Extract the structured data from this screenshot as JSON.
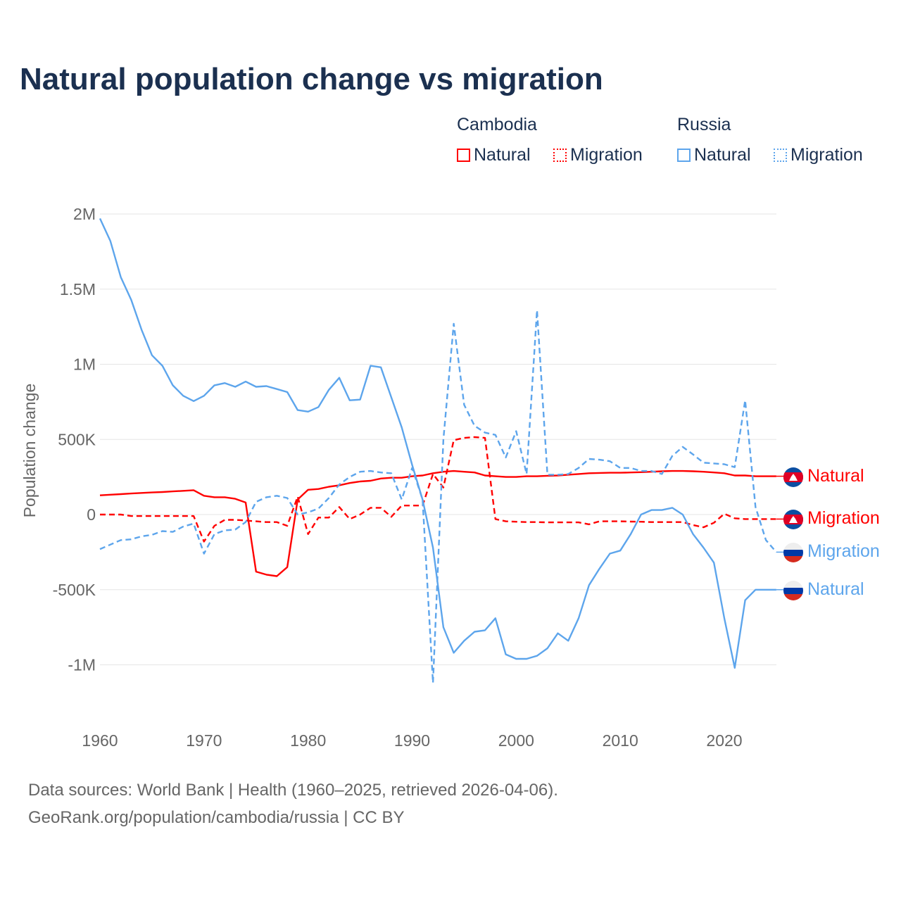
{
  "title": "Natural population change vs migration",
  "legend": {
    "groups": [
      {
        "name": "Cambodia",
        "items": [
          "Natural",
          "Migration"
        ]
      },
      {
        "name": "Russia",
        "items": [
          "Natural",
          "Migration"
        ]
      }
    ]
  },
  "colors": {
    "cambodia": "#ff0000",
    "russia": "#5da5ec",
    "grid": "#e6e6e6",
    "axis_text": "#666666"
  },
  "footer": {
    "line1": "Data sources: World Bank | Health (1960–2025, retrieved 2026-04-06).",
    "line2": "GeoRank.org/population/cambodia/russia | CC BY"
  },
  "chart_data": {
    "type": "line",
    "title": "Natural population change vs migration",
    "xlabel": "",
    "ylabel": "Population change",
    "xlim": [
      1960,
      2025
    ],
    "ylim": [
      -1200000,
      2000000
    ],
    "xticks": [
      1960,
      1970,
      1980,
      1990,
      2000,
      2010,
      2020
    ],
    "xtick_labels": [
      "1960",
      "1970",
      "1980",
      "1990",
      "2000",
      "2010",
      "2020"
    ],
    "yticks": [
      2000000,
      1500000,
      1000000,
      500000,
      0,
      -500000,
      -1000000
    ],
    "ytick_labels": [
      "2M",
      "1.5M",
      "1M",
      "500K",
      "0",
      "-500K",
      "-1M"
    ],
    "grid": true,
    "legend_placement": "top-right",
    "x_start": 1960,
    "series": [
      {
        "name": "Cambodia Natural",
        "end_label": "Natural",
        "country": "Cambodia",
        "dash": false,
        "color": "#ff0000",
        "values": [
          128000,
          132000,
          136000,
          140000,
          144000,
          147000,
          150000,
          154000,
          158000,
          162000,
          125000,
          115000,
          115000,
          105000,
          80000,
          -380000,
          -400000,
          -410000,
          -350000,
          100000,
          165000,
          170000,
          185000,
          195000,
          210000,
          220000,
          225000,
          240000,
          245000,
          245000,
          255000,
          260000,
          275000,
          285000,
          290000,
          285000,
          280000,
          260000,
          255000,
          250000,
          250000,
          255000,
          255000,
          258000,
          260000,
          265000,
          270000,
          275000,
          277000,
          278000,
          278000,
          280000,
          282000,
          285000,
          288000,
          290000,
          290000,
          288000,
          285000,
          280000,
          275000,
          260000,
          260000,
          255000,
          255000,
          255000
        ]
      },
      {
        "name": "Cambodia Migration",
        "end_label": "Migration",
        "country": "Cambodia",
        "dash": true,
        "color": "#ff0000",
        "values": [
          0,
          0,
          0,
          -10000,
          -10000,
          -10000,
          -10000,
          -10000,
          -10000,
          -10000,
          -180000,
          -75000,
          -35000,
          -35000,
          -40000,
          -45000,
          -50000,
          -50000,
          -75000,
          120000,
          -130000,
          -20000,
          -20000,
          50000,
          -30000,
          0,
          45000,
          45000,
          -15000,
          60000,
          60000,
          60000,
          270000,
          180000,
          495000,
          510000,
          515000,
          510000,
          -30000,
          -45000,
          -48000,
          -50000,
          -50000,
          -52000,
          -52000,
          -52000,
          -52000,
          -65000,
          -45000,
          -45000,
          -45000,
          -47000,
          -48000,
          -50000,
          -50000,
          -50000,
          -50000,
          -70000,
          -85000,
          -55000,
          5000,
          -25000,
          -30000,
          -30000,
          -30000,
          -30000
        ]
      },
      {
        "name": "Russia Migration",
        "end_label": "Migration",
        "country": "Russia",
        "dash": true,
        "color": "#5da5ec",
        "values": [
          -230000,
          -200000,
          -170000,
          -165000,
          -145000,
          -135000,
          -110000,
          -115000,
          -80000,
          -60000,
          -260000,
          -130000,
          -105000,
          -100000,
          -50000,
          85000,
          115000,
          125000,
          110000,
          0,
          15000,
          40000,
          110000,
          200000,
          250000,
          285000,
          290000,
          280000,
          275000,
          100000,
          310000,
          100000,
          -1120000,
          500000,
          1270000,
          730000,
          590000,
          545000,
          530000,
          380000,
          555000,
          270000,
          1360000,
          265000,
          265000,
          270000,
          310000,
          370000,
          365000,
          355000,
          310000,
          310000,
          290000,
          290000,
          270000,
          390000,
          450000,
          400000,
          345000,
          340000,
          335000,
          315000,
          760000,
          50000,
          -170000,
          -250000
        ]
      },
      {
        "name": "Russia Natural",
        "end_label": "Natural",
        "country": "Russia",
        "dash": false,
        "color": "#5da5ec",
        "values": [
          1970000,
          1820000,
          1580000,
          1430000,
          1230000,
          1060000,
          990000,
          860000,
          790000,
          755000,
          790000,
          860000,
          875000,
          850000,
          885000,
          850000,
          855000,
          835000,
          815000,
          695000,
          685000,
          715000,
          830000,
          910000,
          760000,
          765000,
          990000,
          980000,
          780000,
          580000,
          330000,
          100000,
          -220000,
          -750000,
          -920000,
          -840000,
          -780000,
          -770000,
          -690000,
          -930000,
          -960000,
          -960000,
          -940000,
          -890000,
          -790000,
          -840000,
          -690000,
          -470000,
          -360000,
          -260000,
          -240000,
          -130000,
          0,
          30000,
          30000,
          45000,
          0,
          -130000,
          -220000,
          -320000,
          -690000,
          -1020000,
          -570000,
          -500000,
          -500000,
          -500000
        ]
      }
    ]
  }
}
